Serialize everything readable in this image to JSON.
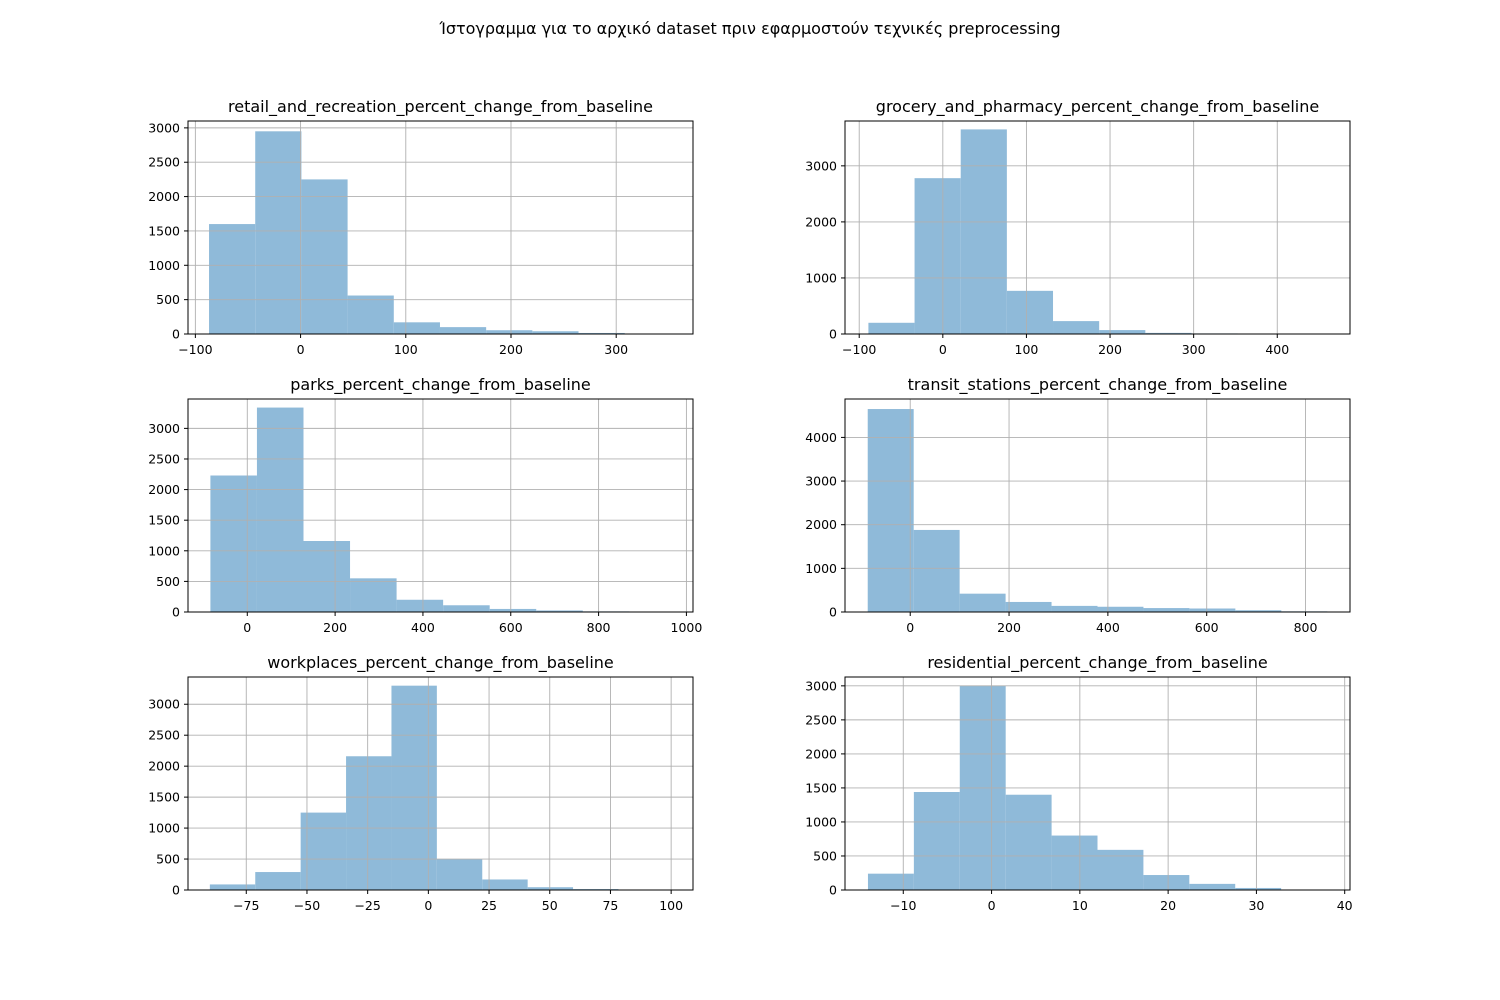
{
  "figure": {
    "suptitle": "Ίστογραμμα για το αρχικό dataset πριν εφαρμοστούν τεχνικές preprocessing",
    "bar_color": "#8fbad9"
  },
  "chart_data": [
    {
      "type": "bar",
      "title": "retail_and_recreation_percent_change_from_baseline",
      "xlim": [
        -107,
        373
      ],
      "ylim": [
        0,
        3100
      ],
      "xticks": [
        -100,
        0,
        100,
        200,
        300
      ],
      "yticks": [
        0,
        500,
        1000,
        1500,
        2000,
        2500,
        3000
      ],
      "grid": true,
      "bin_edges": [
        -87,
        -43.1,
        0.8,
        44.7,
        88.6,
        132.5,
        176.4,
        220.3,
        264.2,
        308.1,
        352
      ],
      "counts": [
        1600,
        2950,
        2250,
        560,
        170,
        100,
        55,
        40,
        15,
        5
      ]
    },
    {
      "type": "bar",
      "title": "grocery_and_pharmacy_percent_change_from_baseline",
      "xlim": [
        -117,
        487
      ],
      "ylim": [
        0,
        3800
      ],
      "xticks": [
        -100,
        0,
        100,
        200,
        300,
        400
      ],
      "yticks": [
        0,
        1000,
        2000,
        3000
      ],
      "grid": true,
      "bin_edges": [
        -89,
        -33.8,
        21.4,
        76.6,
        131.8,
        187,
        242.2,
        297.4,
        352.6,
        407.8,
        463
      ],
      "counts": [
        200,
        2780,
        3650,
        770,
        230,
        70,
        20,
        10,
        5,
        3
      ]
    },
    {
      "type": "bar",
      "title": "parks_percent_change_from_baseline",
      "xlim": [
        -135,
        1015
      ],
      "ylim": [
        0,
        3480
      ],
      "xticks": [
        0,
        200,
        400,
        600,
        800,
        1000
      ],
      "yticks": [
        0,
        500,
        1000,
        1500,
        2000,
        2500,
        3000
      ],
      "grid": true,
      "bin_edges": [
        -84,
        22,
        128,
        234,
        340,
        446,
        552,
        658,
        764,
        870,
        976
      ],
      "counts": [
        2230,
        3340,
        1160,
        550,
        200,
        110,
        50,
        25,
        10,
        3
      ]
    },
    {
      "type": "bar",
      "title": "transit_stations_percent_change_from_baseline",
      "xlim": [
        -132,
        890
      ],
      "ylim": [
        0,
        4880
      ],
      "xticks": [
        0,
        200,
        400,
        600,
        800
      ],
      "yticks": [
        0,
        1000,
        2000,
        3000,
        4000
      ],
      "grid": true,
      "bin_edges": [
        -86,
        7,
        100,
        193,
        286,
        379,
        472,
        565,
        658,
        751,
        844
      ],
      "counts": [
        4650,
        1880,
        420,
        230,
        140,
        120,
        90,
        80,
        40,
        15
      ]
    },
    {
      "type": "bar",
      "title": "workplaces_percent_change_from_baseline",
      "xlim": [
        -99,
        109
      ],
      "ylim": [
        0,
        3440
      ],
      "xticks": [
        -75,
        -50,
        -25,
        0,
        25,
        50,
        75,
        100
      ],
      "yticks": [
        0,
        500,
        1000,
        1500,
        2000,
        2500,
        3000
      ],
      "grid": true,
      "bin_edges": [
        -90,
        -71.3,
        -52.6,
        -33.9,
        -15.2,
        3.5,
        22.2,
        40.9,
        59.6,
        78.3,
        97
      ],
      "counts": [
        90,
        290,
        1250,
        2160,
        3300,
        500,
        170,
        45,
        15,
        5
      ]
    },
    {
      "type": "bar",
      "title": "residential_percent_change_from_baseline",
      "xlim": [
        -16.6,
        40.6
      ],
      "ylim": [
        0,
        3130
      ],
      "xticks": [
        -10,
        0,
        10,
        20,
        30,
        40
      ],
      "yticks": [
        0,
        500,
        1000,
        1500,
        2000,
        2500,
        3000
      ],
      "grid": true,
      "bin_edges": [
        -14,
        -8.8,
        -3.6,
        1.6,
        6.8,
        12,
        17.2,
        22.4,
        27.6,
        32.8,
        38
      ],
      "counts": [
        240,
        1440,
        3000,
        1400,
        800,
        590,
        220,
        90,
        30,
        5
      ]
    }
  ]
}
